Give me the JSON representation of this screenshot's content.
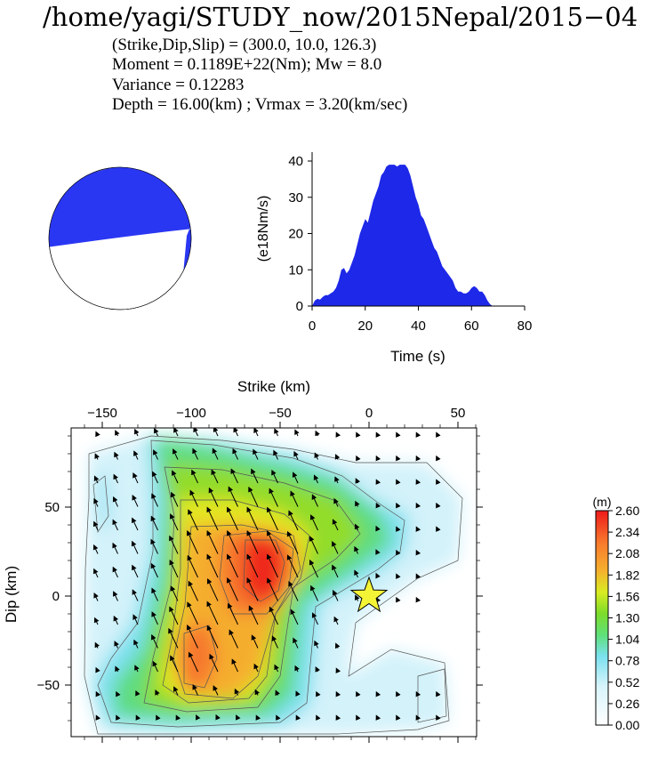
{
  "header": {
    "title": "/home/yagi/STUDY_now/2015Nepal/2015−04",
    "lines": [
      "(Strike,Dip,Slip) = (300.0, 10.0,  126.3)",
      "Moment = 0.1189E+22(Nm); Mw = 8.0",
      "Variance =      0.12283",
      "Depth =  16.00(km) ; Vrmax =   3.20(km/sec)"
    ]
  },
  "colors": {
    "beachball_fill": "#2a37f2",
    "stf_fill": "#1e28e8",
    "epicenter": "#f4f436"
  },
  "chart_data": [
    {
      "type": "area",
      "xlabel": "Time (s)",
      "ylabel": "(e18Nm/s)",
      "xlim": [
        0,
        80
      ],
      "ylim": [
        0,
        42
      ],
      "xticks": [
        "0",
        "20",
        "40",
        "60",
        "80"
      ],
      "yticks": [
        "0",
        "10",
        "20",
        "30",
        "40"
      ],
      "x": [
        0,
        1,
        2,
        3,
        4,
        5,
        6,
        7,
        8,
        9,
        10,
        11,
        12,
        13,
        14,
        15,
        16,
        17,
        18,
        19,
        20,
        21,
        22,
        23,
        24,
        25,
        26,
        27,
        28,
        29,
        30,
        31,
        32,
        33,
        34,
        35,
        36,
        37,
        38,
        39,
        40,
        41,
        42,
        43,
        44,
        45,
        46,
        47,
        48,
        49,
        50,
        51,
        52,
        53,
        54,
        55,
        56,
        57,
        58,
        59,
        60,
        61,
        62,
        63,
        64,
        65,
        66,
        67,
        68,
        69
      ],
      "y": [
        0,
        1.5,
        2,
        1.8,
        2.5,
        3,
        3,
        3.5,
        4,
        5,
        7,
        10,
        10.5,
        9,
        10,
        12,
        14,
        17,
        20,
        22,
        24,
        23,
        26,
        29,
        31,
        33,
        36,
        37,
        38.5,
        39,
        39,
        39,
        38.5,
        39,
        39,
        39,
        38,
        36,
        33,
        30,
        28,
        25,
        24,
        22,
        20,
        18,
        16,
        15,
        13,
        11,
        10,
        9,
        8,
        7,
        5,
        4,
        4,
        3.5,
        3.5,
        4,
        5,
        5.5,
        5,
        4,
        4,
        3,
        1.5,
        0.5,
        0,
        0
      ]
    },
    {
      "type": "heatmap",
      "title": "",
      "x_title": "Strike (km)",
      "ylabel": "Dip (km)",
      "xlim": [
        -160,
        60
      ],
      "ylim": [
        -80,
        90
      ],
      "xticks": [
        "−150",
        "−100",
        "−50",
        "0",
        "50"
      ],
      "yticks": [
        "50",
        "0",
        "−50"
      ],
      "colorbar": {
        "unit": "(m)",
        "labels": [
          "2.60",
          "2.34",
          "2.08",
          "1.82",
          "1.56",
          "1.30",
          "1.04",
          "0.78",
          "0.52",
          "0.26",
          "0.00"
        ]
      },
      "epicenter": {
        "x": 0,
        "y": 0
      }
    }
  ]
}
